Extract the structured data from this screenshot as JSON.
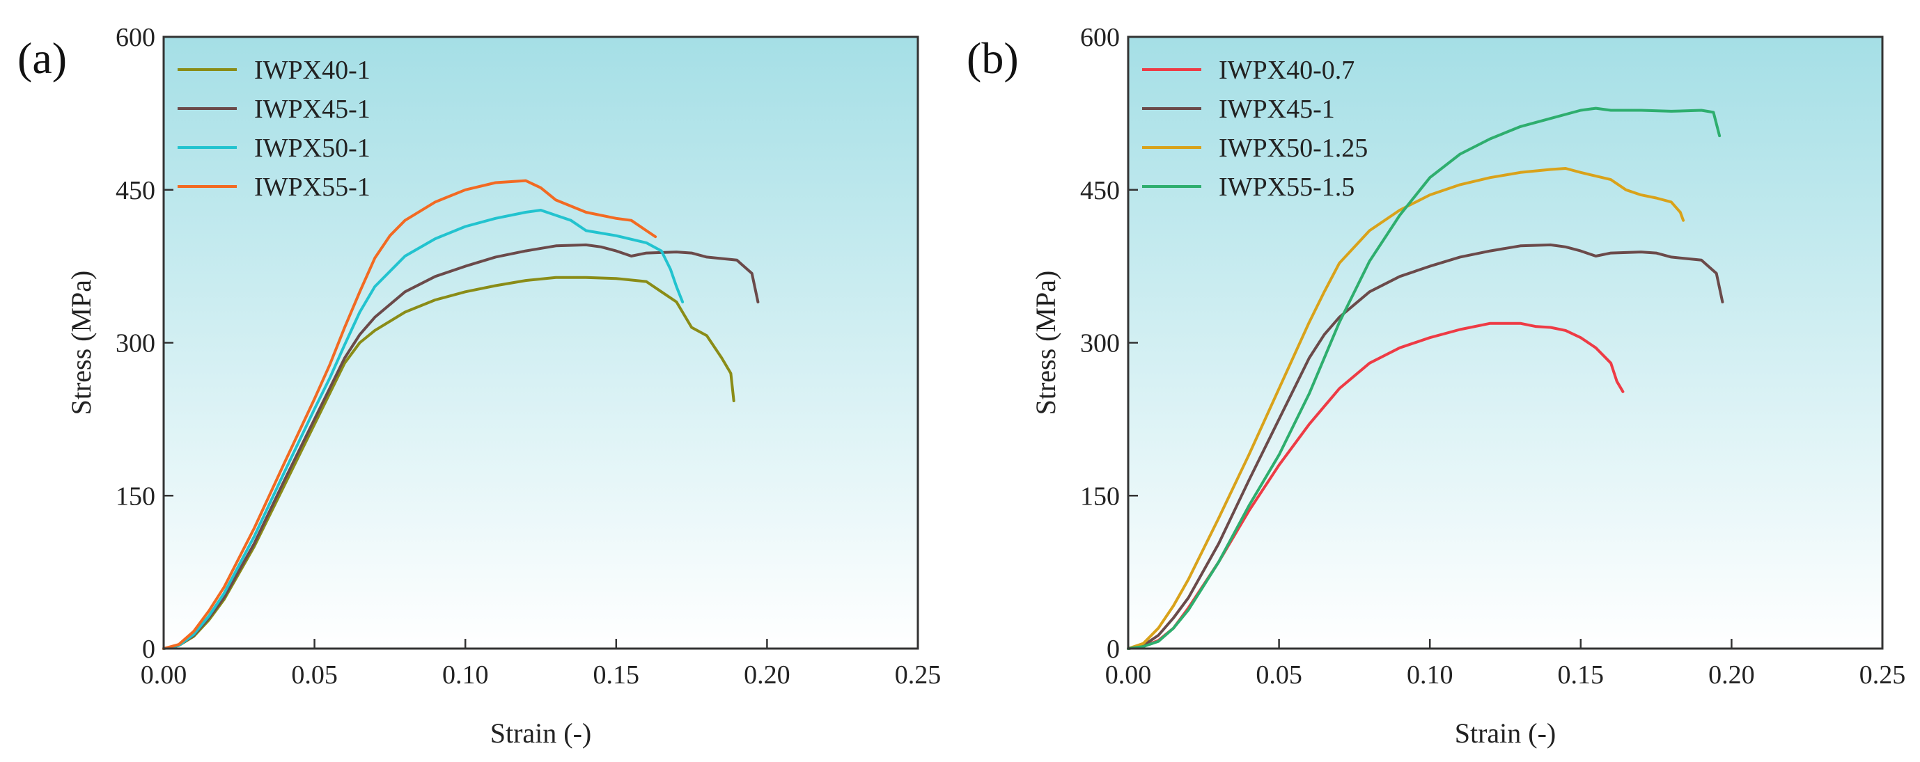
{
  "chart_data": [
    {
      "type": "line",
      "panel_label": "(a)",
      "xlabel": "Strain (-)",
      "ylabel": "Stress (MPa)",
      "xlim": [
        0,
        0.25
      ],
      "ylim": [
        0,
        600
      ],
      "xticks": [
        "0.00",
        "0.05",
        "0.10",
        "0.15",
        "0.20",
        "0.25"
      ],
      "yticks": [
        "0",
        "150",
        "300",
        "450",
        "600"
      ],
      "legend_position": "top-left",
      "background": "gradient light cyan (top) to white (bottom)",
      "series": [
        {
          "name": "IWPX40-1",
          "color": "#8a8c17",
          "points": [
            [
              0,
              0
            ],
            [
              0.005,
              3
            ],
            [
              0.01,
              12
            ],
            [
              0.015,
              28
            ],
            [
              0.02,
              48
            ],
            [
              0.03,
              100
            ],
            [
              0.04,
              160
            ],
            [
              0.05,
              220
            ],
            [
              0.055,
              250
            ],
            [
              0.06,
              280
            ],
            [
              0.065,
              300
            ],
            [
              0.07,
              312
            ],
            [
              0.08,
              330
            ],
            [
              0.09,
              342
            ],
            [
              0.1,
              350
            ],
            [
              0.11,
              356
            ],
            [
              0.12,
              361
            ],
            [
              0.13,
              364
            ],
            [
              0.14,
              364
            ],
            [
              0.15,
              363
            ],
            [
              0.16,
              360
            ],
            [
              0.165,
              350
            ],
            [
              0.17,
              340
            ],
            [
              0.175,
              315
            ],
            [
              0.18,
              307
            ],
            [
              0.185,
              285
            ],
            [
              0.188,
              270
            ],
            [
              0.189,
              243
            ]
          ]
        },
        {
          "name": "IWPX45-1",
          "color": "#6b4a4a",
          "points": [
            [
              0,
              0
            ],
            [
              0.005,
              3
            ],
            [
              0.01,
              13
            ],
            [
              0.015,
              30
            ],
            [
              0.02,
              50
            ],
            [
              0.03,
              103
            ],
            [
              0.04,
              165
            ],
            [
              0.05,
              225
            ],
            [
              0.055,
              255
            ],
            [
              0.06,
              285
            ],
            [
              0.065,
              308
            ],
            [
              0.07,
              325
            ],
            [
              0.08,
              350
            ],
            [
              0.09,
              365
            ],
            [
              0.1,
              375
            ],
            [
              0.11,
              384
            ],
            [
              0.12,
              390
            ],
            [
              0.13,
              395
            ],
            [
              0.14,
              396
            ],
            [
              0.145,
              394
            ],
            [
              0.15,
              390
            ],
            [
              0.155,
              385
            ],
            [
              0.16,
              388
            ],
            [
              0.17,
              389
            ],
            [
              0.175,
              388
            ],
            [
              0.18,
              384
            ],
            [
              0.19,
              381
            ],
            [
              0.195,
              368
            ],
            [
              0.197,
              340
            ]
          ]
        },
        {
          "name": "IWPX50-1",
          "color": "#22c3cf",
          "points": [
            [
              0,
              0
            ],
            [
              0.005,
              3
            ],
            [
              0.01,
              14
            ],
            [
              0.015,
              32
            ],
            [
              0.02,
              54
            ],
            [
              0.03,
              110
            ],
            [
              0.04,
              173
            ],
            [
              0.05,
              235
            ],
            [
              0.055,
              265
            ],
            [
              0.06,
              298
            ],
            [
              0.065,
              330
            ],
            [
              0.07,
              355
            ],
            [
              0.08,
              385
            ],
            [
              0.09,
              402
            ],
            [
              0.1,
              414
            ],
            [
              0.11,
              422
            ],
            [
              0.12,
              428
            ],
            [
              0.125,
              430
            ],
            [
              0.13,
              425
            ],
            [
              0.135,
              420
            ],
            [
              0.14,
              410
            ],
            [
              0.15,
              405
            ],
            [
              0.16,
              398
            ],
            [
              0.165,
              390
            ],
            [
              0.168,
              372
            ],
            [
              0.17,
              355
            ],
            [
              0.172,
              340
            ]
          ]
        },
        {
          "name": "IWPX55-1",
          "color": "#f26a22",
          "points": [
            [
              0,
              0
            ],
            [
              0.005,
              4
            ],
            [
              0.01,
              17
            ],
            [
              0.015,
              37
            ],
            [
              0.02,
              60
            ],
            [
              0.03,
              118
            ],
            [
              0.04,
              182
            ],
            [
              0.05,
              245
            ],
            [
              0.055,
              278
            ],
            [
              0.06,
              315
            ],
            [
              0.065,
              350
            ],
            [
              0.07,
              383
            ],
            [
              0.075,
              405
            ],
            [
              0.08,
              420
            ],
            [
              0.09,
              438
            ],
            [
              0.1,
              450
            ],
            [
              0.11,
              457
            ],
            [
              0.12,
              459
            ],
            [
              0.125,
              452
            ],
            [
              0.13,
              440
            ],
            [
              0.14,
              428
            ],
            [
              0.15,
              422
            ],
            [
              0.155,
              420
            ],
            [
              0.16,
              410
            ],
            [
              0.163,
              404
            ]
          ]
        }
      ]
    },
    {
      "type": "line",
      "panel_label": "(b)",
      "xlabel": "Strain (-)",
      "ylabel": "Stress (MPa)",
      "xlim": [
        0,
        0.25
      ],
      "ylim": [
        0,
        600
      ],
      "xticks": [
        "0.00",
        "0.05",
        "0.10",
        "0.15",
        "0.20",
        "0.25"
      ],
      "yticks": [
        "0",
        "150",
        "300",
        "450",
        "600"
      ],
      "legend_position": "top-left",
      "background": "gradient light cyan (top) to white (bottom)",
      "series": [
        {
          "name": "IWPX40-0.7",
          "color": "#ee3b45",
          "points": [
            [
              0,
              0
            ],
            [
              0.005,
              2
            ],
            [
              0.01,
              8
            ],
            [
              0.015,
              20
            ],
            [
              0.02,
              40
            ],
            [
              0.03,
              85
            ],
            [
              0.04,
              135
            ],
            [
              0.05,
              180
            ],
            [
              0.06,
              220
            ],
            [
              0.07,
              255
            ],
            [
              0.08,
              280
            ],
            [
              0.09,
              295
            ],
            [
              0.1,
              305
            ],
            [
              0.11,
              313
            ],
            [
              0.12,
              319
            ],
            [
              0.13,
              319
            ],
            [
              0.135,
              316
            ],
            [
              0.14,
              315
            ],
            [
              0.145,
              312
            ],
            [
              0.15,
              305
            ],
            [
              0.155,
              295
            ],
            [
              0.16,
              280
            ],
            [
              0.162,
              262
            ],
            [
              0.164,
              252
            ]
          ]
        },
        {
          "name": "IWPX45-1",
          "color": "#6b4a4a",
          "points": [
            [
              0,
              0
            ],
            [
              0.005,
              3
            ],
            [
              0.01,
              13
            ],
            [
              0.015,
              30
            ],
            [
              0.02,
              50
            ],
            [
              0.03,
              103
            ],
            [
              0.04,
              165
            ],
            [
              0.05,
              225
            ],
            [
              0.055,
              255
            ],
            [
              0.06,
              285
            ],
            [
              0.065,
              308
            ],
            [
              0.07,
              325
            ],
            [
              0.08,
              350
            ],
            [
              0.09,
              365
            ],
            [
              0.1,
              375
            ],
            [
              0.11,
              384
            ],
            [
              0.12,
              390
            ],
            [
              0.13,
              395
            ],
            [
              0.14,
              396
            ],
            [
              0.145,
              394
            ],
            [
              0.15,
              390
            ],
            [
              0.155,
              385
            ],
            [
              0.16,
              388
            ],
            [
              0.17,
              389
            ],
            [
              0.175,
              388
            ],
            [
              0.18,
              384
            ],
            [
              0.19,
              381
            ],
            [
              0.195,
              368
            ],
            [
              0.197,
              340
            ]
          ]
        },
        {
          "name": "IWPX50-1.25",
          "color": "#d9a21a",
          "points": [
            [
              0,
              0
            ],
            [
              0.005,
              5
            ],
            [
              0.01,
              20
            ],
            [
              0.015,
              42
            ],
            [
              0.02,
              68
            ],
            [
              0.03,
              128
            ],
            [
              0.04,
              190
            ],
            [
              0.05,
              255
            ],
            [
              0.06,
              320
            ],
            [
              0.065,
              350
            ],
            [
              0.07,
              378
            ],
            [
              0.08,
              410
            ],
            [
              0.09,
              430
            ],
            [
              0.1,
              445
            ],
            [
              0.11,
              455
            ],
            [
              0.12,
              462
            ],
            [
              0.13,
              467
            ],
            [
              0.14,
              470
            ],
            [
              0.145,
              471
            ],
            [
              0.15,
              467
            ],
            [
              0.16,
              460
            ],
            [
              0.165,
              450
            ],
            [
              0.17,
              445
            ],
            [
              0.175,
              442
            ],
            [
              0.18,
              438
            ],
            [
              0.183,
              428
            ],
            [
              0.184,
              420
            ]
          ]
        },
        {
          "name": "IWPX55-1.5",
          "color": "#2eae6e",
          "points": [
            [
              0,
              0
            ],
            [
              0.005,
              2
            ],
            [
              0.01,
              7
            ],
            [
              0.015,
              20
            ],
            [
              0.02,
              38
            ],
            [
              0.03,
              85
            ],
            [
              0.04,
              140
            ],
            [
              0.05,
              190
            ],
            [
              0.06,
              250
            ],
            [
              0.07,
              320
            ],
            [
              0.08,
              380
            ],
            [
              0.09,
              425
            ],
            [
              0.1,
              462
            ],
            [
              0.11,
              485
            ],
            [
              0.12,
              500
            ],
            [
              0.13,
              512
            ],
            [
              0.14,
              520
            ],
            [
              0.15,
              528
            ],
            [
              0.155,
              530
            ],
            [
              0.16,
              528
            ],
            [
              0.17,
              528
            ],
            [
              0.18,
              527
            ],
            [
              0.19,
              528
            ],
            [
              0.194,
              526
            ],
            [
              0.196,
              503
            ]
          ]
        }
      ]
    }
  ]
}
